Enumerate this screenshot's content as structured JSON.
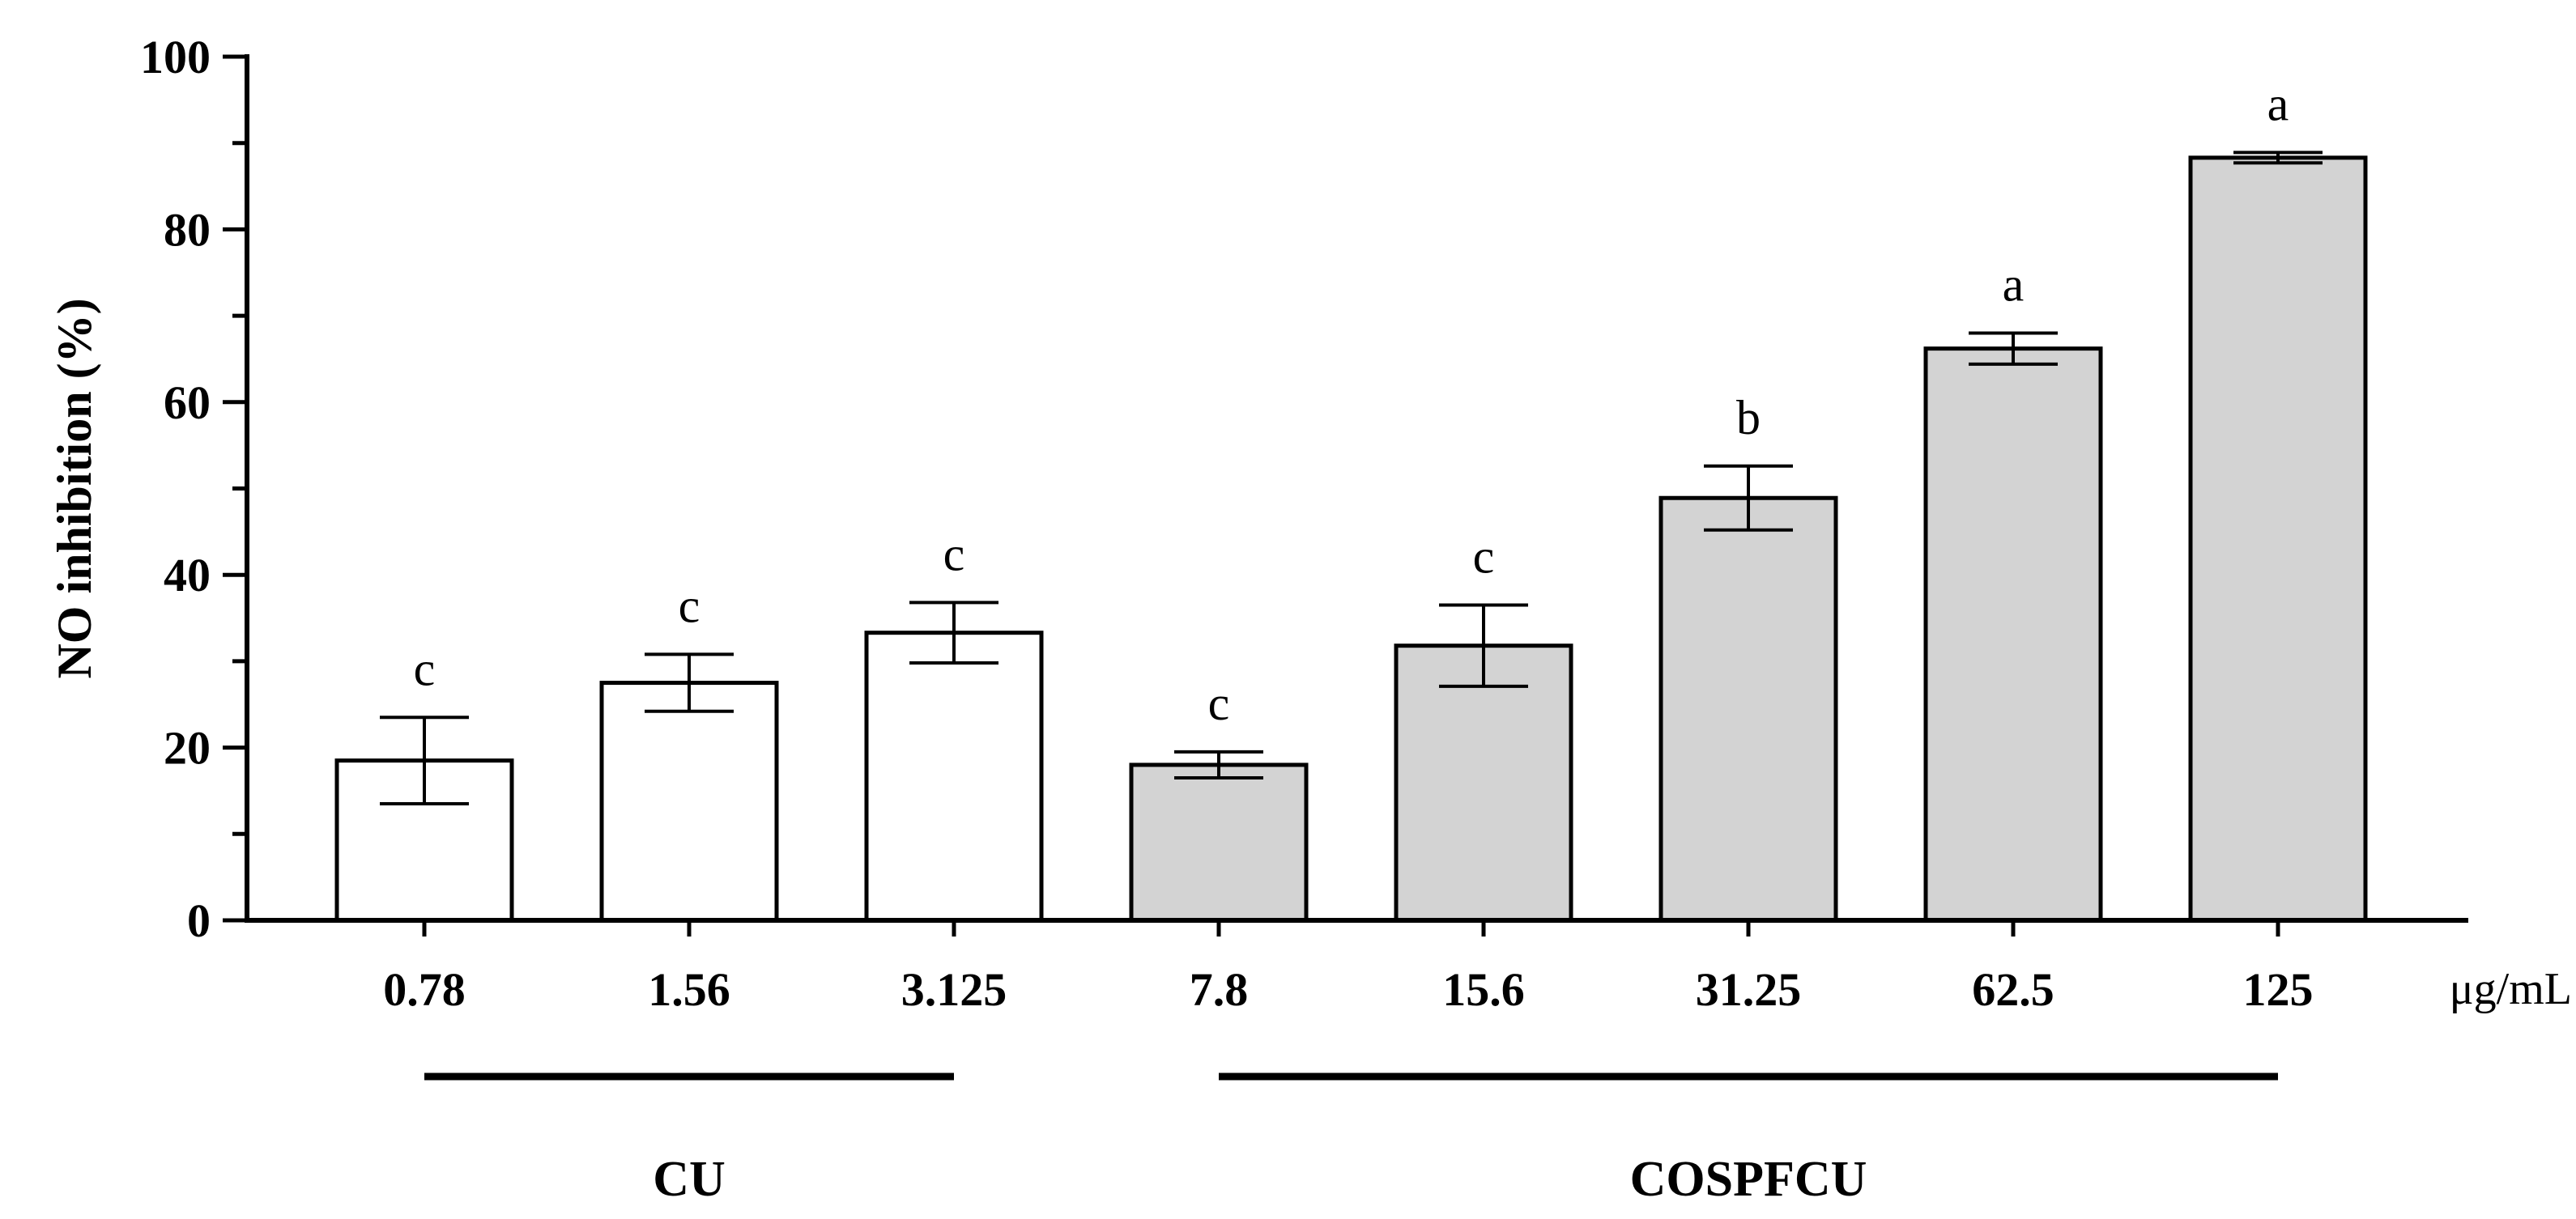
{
  "chart_data": {
    "type": "bar",
    "title": "",
    "ylabel": "NO inhibition (%)",
    "xlabel": "",
    "x_unit": "μg/mL",
    "ylim": [
      0,
      100
    ],
    "yticks": [
      "0",
      "20",
      "40",
      "60",
      "80",
      "100"
    ],
    "categories": [
      "0.78",
      "1.56",
      "3.125",
      "7.8",
      "15.6",
      "31.25",
      "62.5",
      "125"
    ],
    "values": [
      18.5,
      27.5,
      33.3,
      18.0,
      31.8,
      48.9,
      66.2,
      88.3
    ],
    "errors": [
      5.0,
      3.3,
      3.5,
      1.5,
      4.7,
      3.7,
      1.8,
      0.6
    ],
    "significance": [
      "c",
      "c",
      "c",
      "c",
      "c",
      "b",
      "a",
      "a"
    ],
    "groups": [
      {
        "name": "CU",
        "start": 0,
        "end": 2,
        "color": "#ffffff"
      },
      {
        "name": "COSPFCU",
        "start": 3,
        "end": 7,
        "color": "#d3d3d3"
      }
    ],
    "grid": false
  }
}
